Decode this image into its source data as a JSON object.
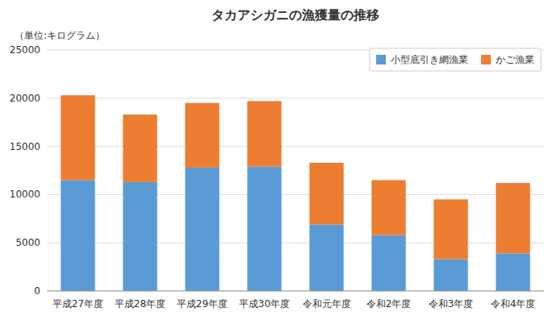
{
  "chart_data": {
    "type": "bar",
    "stacked": true,
    "title": "タカアシガニの漁獲量の推移",
    "subtitle": "（単位:キログラム）",
    "categories": [
      "平成27年度",
      "平成28年度",
      "平成29年度",
      "平成30年度",
      "令和元年度",
      "令和2年度",
      "令和3年度",
      "令和4年度"
    ],
    "series": [
      {
        "name": "小型底引き網漁業",
        "color": "#5B9BD5",
        "values": [
          11500,
          11300,
          12800,
          12900,
          6900,
          5800,
          3300,
          3900
        ]
      },
      {
        "name": "かご漁業",
        "color": "#ED7D31",
        "values": [
          8800,
          7000,
          6700,
          6800,
          6400,
          5700,
          6200,
          7300
        ]
      }
    ],
    "ylim": [
      0,
      25000
    ],
    "yticks": [
      0,
      5000,
      10000,
      15000,
      20000,
      25000
    ],
    "grid": true,
    "legend": "upper right"
  }
}
